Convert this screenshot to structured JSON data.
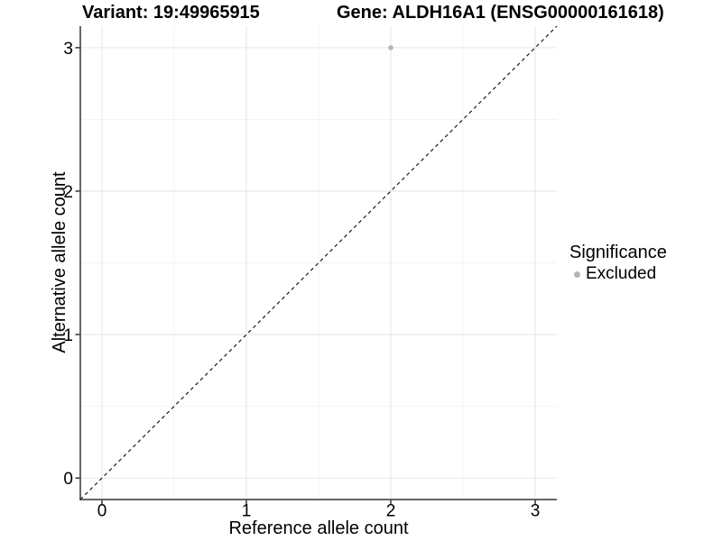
{
  "chart_data": {
    "type": "scatter",
    "title_left": "Variant: 19:49965915",
    "title_right": "Gene: ALDH16A1 (ENSG00000161618)",
    "xlabel": "Reference allele count",
    "ylabel": "Alternative allele count",
    "xlim": [
      -0.15,
      3.15
    ],
    "ylim": [
      -0.15,
      3.15
    ],
    "x_ticks": [
      0,
      1,
      2,
      3
    ],
    "y_ticks": [
      0,
      1,
      2,
      3
    ],
    "grid": "major+minor",
    "identity_line": {
      "style": "dashed",
      "slope": 1,
      "intercept": 0,
      "color": "#1a1a1a"
    },
    "series": [
      {
        "name": "Excluded",
        "color": "#b5b5b5",
        "points": [
          {
            "x": 2,
            "y": 3
          }
        ]
      }
    ],
    "legend": {
      "title": "Significance",
      "position": "right",
      "items": [
        {
          "label": "Excluded",
          "color": "#b5b5b5",
          "marker": "circle"
        }
      ]
    }
  },
  "colors": {
    "background": "#ffffff",
    "axis": "#333333",
    "grid_major": "#e6e6e6",
    "grid_minor": "#f2f2f2",
    "text": "#000000",
    "point": "#b5b5b5"
  }
}
